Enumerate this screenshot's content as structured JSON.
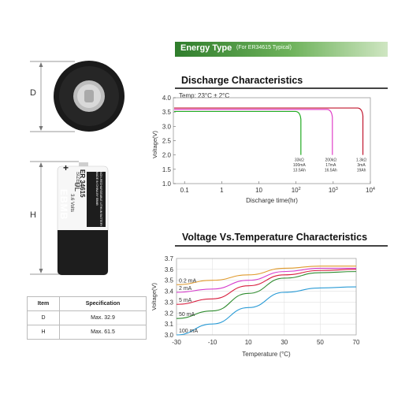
{
  "battery": {
    "dim_d": "D",
    "dim_h": "H",
    "logo": "EBMB",
    "model": "ER 34615",
    "size": "SIZE D",
    "voltage": "3.6 Volts",
    "made_in": "MADE IN CHINA BY EBMB",
    "spec_line": "NON-RECHARGEABLE LITHIUM BATTERY",
    "ul_mark": "UL",
    "plus": "+"
  },
  "spec_table": {
    "headers": [
      "Item",
      "Specification"
    ],
    "rows": [
      {
        "item": "D",
        "spec": "Max. 32.9"
      },
      {
        "item": "H",
        "spec": "Max. 61.5"
      }
    ]
  },
  "banner": {
    "title": "Energy Type",
    "subtitle": "(For ER34615 Typical)",
    "color_dark": "#2f7d2c",
    "color_light": "#cfe6c2"
  },
  "chart_data": [
    {
      "type": "line",
      "title": "Discharge Characteristics",
      "note": "Temp: 23°C ± 2°C",
      "xlabel": "Discharge time(hr)",
      "ylabel": "Voltage(V)",
      "x_scale": "log",
      "xlim": [
        0.05,
        10000
      ],
      "ylim": [
        1.0,
        4.0
      ],
      "y_ticks": [
        "1.0",
        "1.5",
        "2.0",
        "2.5",
        "3.0",
        "3.5",
        "4.0"
      ],
      "x_ticks": [
        {
          "value": 0.1,
          "label": "0.1"
        },
        {
          "value": 1,
          "label": "1"
        },
        {
          "value": 10,
          "label": "10"
        },
        {
          "value": 100,
          "label": "10",
          "exp": "2"
        },
        {
          "value": 1000,
          "label": "10",
          "exp": "3"
        },
        {
          "value": 10000,
          "label": "10",
          "exp": "4"
        }
      ],
      "grid": false,
      "series": [
        {
          "color": "#22aa22",
          "flat_v": 3.52,
          "end_hr": 135,
          "drop_v": 2.0,
          "annotation": [
            "33kΩ",
            "100mA",
            "13.5Ah"
          ]
        },
        {
          "color": "#e040c8",
          "flat_v": 3.59,
          "end_hr": 950,
          "drop_v": 2.0,
          "annotation": [
            "200kΩ",
            "17mA",
            "16.5Ah"
          ]
        },
        {
          "color": "#c0162e",
          "flat_v": 3.64,
          "end_hr": 6300,
          "drop_v": 2.0,
          "annotation": [
            "1.3kΩ",
            "3mA",
            "19Ah"
          ]
        }
      ]
    },
    {
      "type": "line",
      "title": "Voltage Vs.Temperature Characteristics",
      "xlabel": "Temperature (°C)",
      "ylabel": "Voltage(V)",
      "xlim": [
        -30,
        70
      ],
      "ylim": [
        3.0,
        3.7
      ],
      "x_ticks": [
        -30,
        -10,
        10,
        30,
        50,
        70
      ],
      "y_ticks": [
        "3.0",
        "3.1",
        "3.2",
        "3.3",
        "3.4",
        "3.5",
        "3.6",
        "3.7"
      ],
      "grid": true,
      "series": [
        {
          "name": "0.2 mA",
          "color": "#e09a2c",
          "points": [
            [
              -30,
              3.46
            ],
            [
              -10,
              3.5
            ],
            [
              10,
              3.55
            ],
            [
              30,
              3.61
            ],
            [
              50,
              3.63
            ],
            [
              70,
              3.63
            ]
          ]
        },
        {
          "name": "2 mA",
          "color": "#d63ccc",
          "points": [
            [
              -30,
              3.39
            ],
            [
              -10,
              3.42
            ],
            [
              10,
              3.5
            ],
            [
              30,
              3.58
            ],
            [
              50,
              3.61
            ],
            [
              70,
              3.61
            ]
          ]
        },
        {
          "name": "5 mA",
          "color": "#d81b3c",
          "points": [
            [
              -30,
              3.28
            ],
            [
              -10,
              3.33
            ],
            [
              10,
              3.45
            ],
            [
              30,
              3.55
            ],
            [
              50,
              3.59
            ],
            [
              70,
              3.6
            ]
          ]
        },
        {
          "name": "50 mA",
          "color": "#2e8b2e",
          "points": [
            [
              -30,
              3.15
            ],
            [
              -10,
              3.22
            ],
            [
              10,
              3.38
            ],
            [
              30,
              3.52
            ],
            [
              50,
              3.57
            ],
            [
              70,
              3.58
            ]
          ]
        },
        {
          "name": "100 mA",
          "color": "#2a9bd6",
          "points": [
            [
              -30,
              3.0
            ],
            [
              -10,
              3.1
            ],
            [
              10,
              3.25
            ],
            [
              30,
              3.39
            ],
            [
              50,
              3.43
            ],
            [
              70,
              3.44
            ]
          ]
        }
      ]
    }
  ]
}
